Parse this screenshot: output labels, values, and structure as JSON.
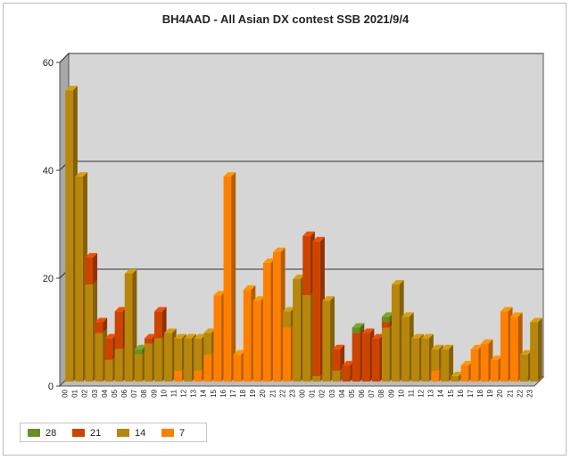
{
  "chart_data": {
    "type": "bar",
    "stacked": true,
    "title": "BH4AAD - All Asian DX contest SSB 2021/9/4",
    "xlabel": "",
    "ylabel": "",
    "ylim": [
      0,
      60
    ],
    "yticks": [
      0,
      20,
      40,
      60
    ],
    "grid": true,
    "legend_position": "bottom-left",
    "categories": [
      "00",
      "01",
      "02",
      "03",
      "04",
      "05",
      "06",
      "07",
      "08",
      "09",
      "10",
      "11",
      "12",
      "13",
      "14",
      "15",
      "16",
      "17",
      "18",
      "19",
      "20",
      "21",
      "22",
      "23",
      "00",
      "01",
      "02",
      "03",
      "04",
      "05",
      "06",
      "07",
      "08",
      "09",
      "10",
      "11",
      "12",
      "13",
      "14",
      "15",
      "16",
      "17",
      "18",
      "19",
      "20",
      "21",
      "22",
      "23"
    ],
    "series": [
      {
        "name": "7",
        "color": "#ff8000",
        "values": [
          0,
          0,
          0,
          0,
          0,
          0,
          0,
          0,
          0,
          0,
          0,
          2,
          0,
          2,
          5,
          16,
          38,
          5,
          17,
          15,
          22,
          24,
          10,
          0,
          0,
          0,
          0,
          0,
          0,
          0,
          0,
          0,
          0,
          0,
          0,
          0,
          0,
          2,
          0,
          0,
          3,
          6,
          7,
          4,
          13,
          12,
          0,
          0
        ]
      },
      {
        "name": "14",
        "color": "#b8860b",
        "values": [
          54,
          38,
          18,
          9,
          4,
          6,
          20,
          5,
          7,
          8,
          9,
          6,
          8,
          6,
          4,
          0,
          0,
          0,
          0,
          0,
          0,
          0,
          3,
          19,
          16,
          1,
          15,
          2,
          0,
          0,
          0,
          0,
          10,
          18,
          12,
          8,
          8,
          4,
          6,
          1,
          0,
          0,
          0,
          0,
          0,
          0,
          5,
          11
        ]
      },
      {
        "name": "21",
        "color": "#cc4400",
        "values": [
          0,
          0,
          5,
          2,
          4,
          7,
          0,
          0,
          1,
          5,
          0,
          0,
          0,
          0,
          0,
          0,
          0,
          0,
          0,
          0,
          0,
          0,
          0,
          0,
          11,
          25,
          0,
          4,
          3,
          9,
          9,
          8,
          1,
          0,
          0,
          0,
          0,
          0,
          0,
          0,
          0,
          0,
          0,
          0,
          0,
          0,
          0,
          0
        ]
      },
      {
        "name": "28",
        "color": "#6b8e23",
        "values": [
          0,
          0,
          0,
          0,
          0,
          0,
          0,
          1,
          0,
          0,
          0,
          0,
          0,
          0,
          0,
          0,
          0,
          0,
          0,
          0,
          0,
          0,
          0,
          0,
          0,
          0,
          0,
          0,
          0,
          1,
          0,
          0,
          1,
          0,
          0,
          0,
          0,
          0,
          0,
          0,
          0,
          0,
          0,
          0,
          0,
          0,
          0,
          0
        ]
      }
    ],
    "legend_order": [
      "28",
      "21",
      "14",
      "7"
    ]
  },
  "colors": {
    "plot_background": "#d6d6d6",
    "plot_wall": "#a8a8a8",
    "plot_floor": "#bcbcbc",
    "gridline": "#333333",
    "axis_text": "#222222"
  }
}
